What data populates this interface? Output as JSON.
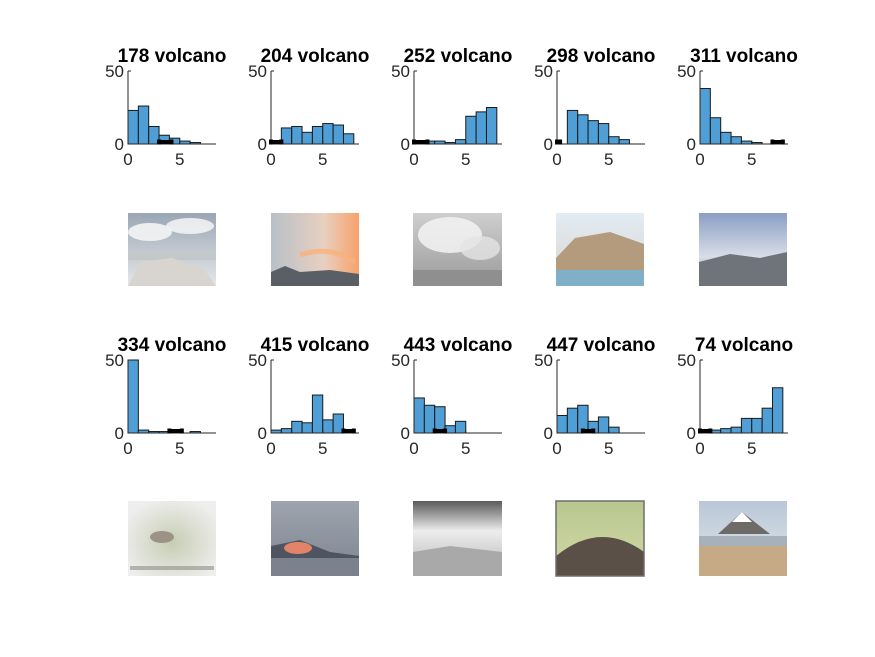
{
  "figure": {
    "background": "#ffffff",
    "bar_color": "#4f9fd6"
  },
  "chart_data": [
    {
      "type": "bar",
      "title": "178 volcano",
      "bin_edges": [
        0,
        1,
        2,
        3,
        4,
        5,
        6,
        7,
        8
      ],
      "values": [
        23,
        26,
        12,
        6,
        4,
        2,
        1,
        0
      ],
      "xlim": [
        0,
        8.5
      ],
      "ylim": [
        0,
        50
      ],
      "xticks": [
        "0",
        "5"
      ],
      "yticks": [
        "0",
        "50"
      ],
      "range_marker": [
        3,
        4.2
      ],
      "image": "rocky shoreline with cloudy sky"
    },
    {
      "type": "bar",
      "title": "204 volcano",
      "bin_edges": [
        0,
        1,
        2,
        3,
        4,
        5,
        6,
        7,
        8
      ],
      "values": [
        2,
        11,
        12,
        8,
        12,
        14,
        13,
        7
      ],
      "xlim": [
        0,
        8.5
      ],
      "ylim": [
        0,
        50
      ],
      "xticks": [
        "0",
        "5"
      ],
      "yticks": [
        "0",
        "50"
      ],
      "range_marker": [
        0,
        1
      ],
      "image": "sunset sky over distant peak"
    },
    {
      "type": "bar",
      "title": "252 volcano",
      "bin_edges": [
        0,
        1,
        2,
        3,
        4,
        5,
        6,
        7,
        8
      ],
      "values": [
        2,
        2,
        2,
        1,
        3,
        19,
        22,
        25
      ],
      "xlim": [
        0,
        8.5
      ],
      "ylim": [
        0,
        50
      ],
      "xticks": [
        "0",
        "5"
      ],
      "yticks": [
        "0",
        "50"
      ],
      "range_marker": [
        0,
        1.3
      ],
      "image": "black and white eruption cloud"
    },
    {
      "type": "bar",
      "title": "298 volcano",
      "bin_edges": [
        0,
        1,
        2,
        3,
        4,
        5,
        6,
        7,
        8
      ],
      "values": [
        0,
        23,
        20,
        16,
        14,
        5,
        3,
        0
      ],
      "xlim": [
        0,
        8.5
      ],
      "ylim": [
        0,
        50
      ],
      "xticks": [
        "0",
        "5"
      ],
      "yticks": [
        "0",
        "50"
      ],
      "range_marker": [
        0,
        0.3
      ],
      "image": "coastal hills above water"
    },
    {
      "type": "bar",
      "title": "311 volcano",
      "bin_edges": [
        0,
        1,
        2,
        3,
        4,
        5,
        6,
        7,
        8
      ],
      "values": [
        38,
        18,
        8,
        5,
        2,
        1,
        0,
        0
      ],
      "xlim": [
        0,
        8.5
      ],
      "ylim": [
        0,
        50
      ],
      "xticks": [
        "0",
        "5"
      ],
      "yticks": [
        "0",
        "50"
      ],
      "range_marker": [
        7,
        8
      ],
      "image": "blue cloudy sky over dark valley"
    },
    {
      "type": "bar",
      "title": "334 volcano",
      "bin_edges": [
        0,
        1,
        2,
        3,
        4,
        5,
        6,
        7,
        8
      ],
      "values": [
        50,
        2,
        1,
        1,
        2,
        0,
        1,
        0
      ],
      "xlim": [
        0,
        8.5
      ],
      "ylim": [
        0,
        50
      ],
      "xticks": [
        "0",
        "5"
      ],
      "yticks": [
        "0",
        "50"
      ],
      "range_marker": [
        4,
        5.2
      ],
      "image": "animal on grassy ground at night"
    },
    {
      "type": "bar",
      "title": "415 volcano",
      "bin_edges": [
        0,
        1,
        2,
        3,
        4,
        5,
        6,
        7,
        8
      ],
      "values": [
        2,
        3,
        8,
        7,
        26,
        9,
        13,
        0
      ],
      "xlim": [
        0,
        8.5
      ],
      "ylim": [
        0,
        50
      ],
      "xticks": [
        "0",
        "5"
      ],
      "yticks": [
        "0",
        "50"
      ],
      "range_marker": [
        7,
        8
      ],
      "image": "glowing lava flowing into sea"
    },
    {
      "type": "bar",
      "title": "443 volcano",
      "bin_edges": [
        0,
        1,
        2,
        3,
        4,
        5,
        6,
        7,
        8
      ],
      "values": [
        24,
        19,
        18,
        5,
        8,
        0,
        0,
        0
      ],
      "xlim": [
        0,
        8.5
      ],
      "ylim": [
        0,
        50
      ],
      "xticks": [
        "0",
        "5"
      ],
      "yticks": [
        "0",
        "50"
      ],
      "range_marker": [
        2,
        3
      ],
      "image": "black and white barren landscape"
    },
    {
      "type": "bar",
      "title": "447 volcano",
      "bin_edges": [
        0,
        1,
        2,
        3,
        4,
        5,
        6,
        7,
        8
      ],
      "values": [
        12,
        17,
        19,
        8,
        11,
        4,
        0,
        0
      ],
      "xlim": [
        0,
        8.5
      ],
      "ylim": [
        0,
        50
      ],
      "xticks": [
        "0",
        "5"
      ],
      "yticks": [
        "0",
        "50"
      ],
      "range_marker": [
        2.5,
        3.5
      ],
      "image": "dark dome under green sky"
    },
    {
      "type": "bar",
      "title": "74 volcano",
      "bin_edges": [
        0,
        1,
        2,
        3,
        4,
        5,
        6,
        7,
        8
      ],
      "values": [
        1,
        2,
        3,
        4,
        10,
        10,
        17,
        31
      ],
      "xlim": [
        0,
        8.5
      ],
      "ylim": [
        0,
        50
      ],
      "xticks": [
        "0",
        "5"
      ],
      "yticks": [
        "0",
        "50"
      ],
      "range_marker": [
        0,
        1
      ],
      "image": "snow capped cone over plains"
    }
  ]
}
